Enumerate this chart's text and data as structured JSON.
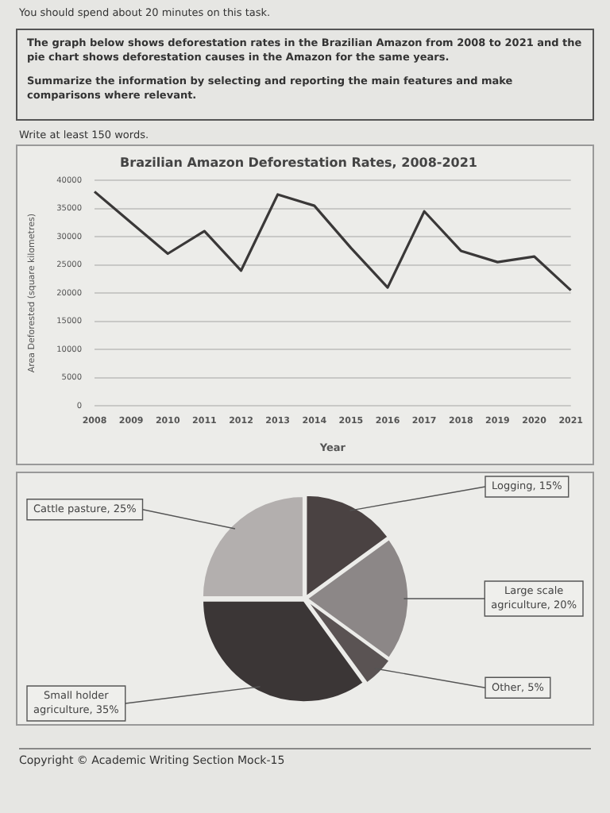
{
  "chart_data": [
    {
      "type": "line",
      "title": "Brazilian Amazon Deforestation Rates, 2008-2021",
      "xlabel": "Year",
      "ylabel": "Area Deforested (square kilometres)",
      "annotations": [
        "You should spend about 20 minutes on this task.",
        "The graph below shows deforestation rates in the Brazilian Amazon from 2008 to 2021 and the pie chart shows deforestation causes in the Amazon for the same years.",
        "Summarize the information by selecting and reporting the main features and make comparisons where relevant.",
        "Write at least 150 words."
      ],
      "categories": [
        "2008",
        "2009",
        "2010",
        "2011",
        "2012",
        "2013",
        "2014",
        "2015",
        "2016",
        "2017",
        "2018",
        "2019",
        "2020",
        "2021"
      ],
      "values": [
        38000,
        32500,
        27000,
        31000,
        24000,
        37500,
        35500,
        28000,
        21000,
        34500,
        27500,
        25500,
        26500,
        20500
      ],
      "color": "#3a3838",
      "ylim": [
        0,
        40000
      ],
      "yticks": [
        0,
        5000,
        10000,
        15000,
        20000,
        25000,
        30000,
        35000,
        40000
      ],
      "grid": "y",
      "legend": false,
      "marker": "none",
      "line_style": "solid"
    },
    {
      "type": "pie",
      "categories": [
        "Logging, 15%",
        "Large scale agriculture, 20%",
        "Other, 5%",
        "Small holder agriculture, 35%",
        "Cattle pasture, 25%"
      ],
      "values": [
        15,
        20,
        5,
        35,
        25
      ],
      "colors": [
        "#4a4242",
        "#8c8787",
        "#5a5353",
        "#3b3636",
        "#b3afae"
      ],
      "legend": false,
      "annotations": [
        "Copyright © Academic Writing Section Mock-15"
      ]
    }
  ]
}
